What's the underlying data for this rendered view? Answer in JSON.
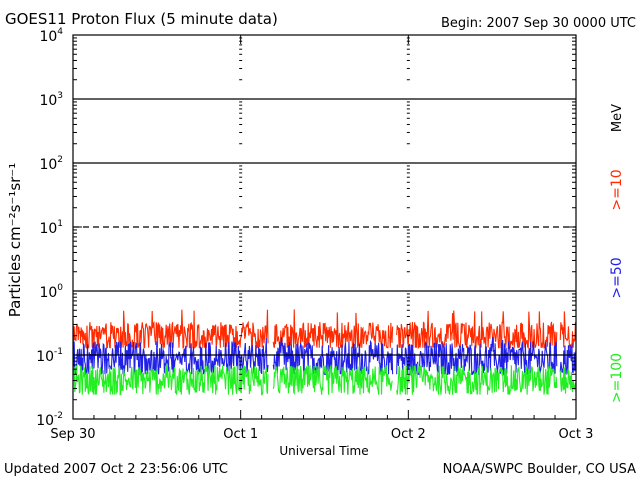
{
  "header": {
    "title": "GOES11 Proton Flux (5 minute data)",
    "begin": "Begin: 2007 Sep 30 0000 UTC"
  },
  "footer": {
    "updated": "Updated 2007 Oct  2 23:56:06 UTC",
    "source": "NOAA/SWPC Boulder, CO USA"
  },
  "chart_data": {
    "type": "line",
    "title": "GOES11 Proton Flux (5 minute data)",
    "xlabel": "Universal Time",
    "ylabel": "Particles cm⁻²s⁻¹sr⁻¹",
    "yscale": "log",
    "ylim": [
      0.01,
      10000
    ],
    "xlim": [
      "2007-09-30 00:00",
      "2007-10-03 00:00"
    ],
    "x_tick_labels": [
      "Sep 30",
      "Oct 1",
      "Oct 2",
      "Oct 3"
    ],
    "y_ticks": [
      {
        "base": "10",
        "exp": "-2"
      },
      {
        "base": "10",
        "exp": "-1"
      },
      {
        "base": "10",
        "exp": "0"
      },
      {
        "base": "10",
        "exp": "1"
      },
      {
        "base": "10",
        "exp": "2"
      },
      {
        "base": "10",
        "exp": "3"
      },
      {
        "base": "10",
        "exp": "4"
      }
    ],
    "reference_lines": [
      {
        "value": 1000,
        "style": "solid"
      },
      {
        "value": 100,
        "style": "solid"
      },
      {
        "value": 10,
        "style": "dashed"
      },
      {
        "value": 1,
        "style": "solid"
      },
      {
        "value": 0.1,
        "style": "solid"
      }
    ],
    "data_gaps_hours": [
      [
        28.0,
        28.6
      ],
      [
        45.8,
        46.3
      ],
      [
        69.3,
        69.7
      ]
    ],
    "series": [
      {
        "name": ">=10",
        "color": "#ff2a00",
        "base": 0.19,
        "spread": 0.55,
        "spike_max": 0.52,
        "floor": 0.13
      },
      {
        "name": ">=50",
        "color": "#2020e8",
        "base": 0.085,
        "spread": 0.65,
        "spike_max": 0.19,
        "floor": 0.05
      },
      {
        "name": ">=100",
        "color": "#22ee22",
        "base": 0.04,
        "spread": 0.55,
        "spike_max": 0.075,
        "floor": 0.024
      }
    ],
    "units_label": "MeV",
    "grid": false
  }
}
